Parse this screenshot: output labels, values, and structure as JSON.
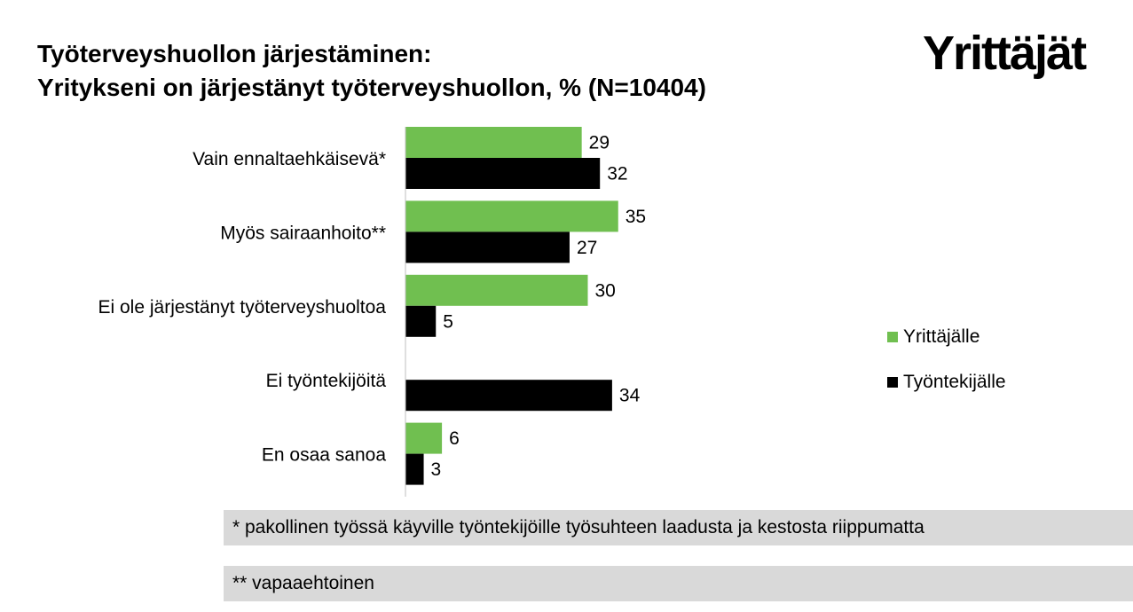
{
  "title": {
    "line1": "Työterveyshuollon järjestäminen:",
    "line2": "Yritykseni on järjestänyt työterveyshuollon, % (N=10404)"
  },
  "logo": "Yrittäjät",
  "colors": {
    "yrittajalle": "#70bf50",
    "tyontekijalle": "#000000",
    "footnote_bg": "#d9d9d9"
  },
  "chart_data": {
    "type": "bar",
    "orientation": "horizontal",
    "title": "Yritykseni on järjestänyt työterveyshuollon, % (N=10404)",
    "categories": [
      "Vain ennaltaehkäisevä*",
      "Myös sairaanhoito**",
      "Ei ole järjestänyt työterveyshuoltoa",
      "Ei työntekijöitä",
      "En osaa sanoa"
    ],
    "series": [
      {
        "name": "Yrittäjälle",
        "color": "#70bf50",
        "values": [
          29,
          35,
          30,
          null,
          6
        ]
      },
      {
        "name": "Työntekijälle",
        "color": "#000000",
        "values": [
          32,
          27,
          5,
          34,
          3
        ]
      }
    ],
    "xlim": [
      0,
      40
    ],
    "grid": false,
    "legend_position": "right"
  },
  "footnotes": [
    "* pakollinen työssä käyville työntekijöille työsuhteen laadusta ja kestosta riippumatta",
    "** vapaaehtoinen"
  ]
}
